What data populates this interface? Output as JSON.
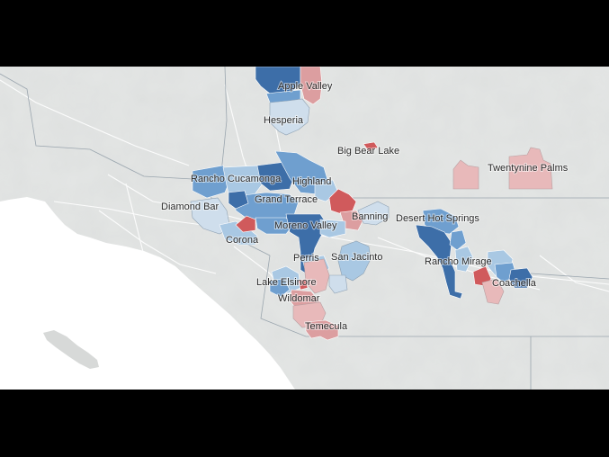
{
  "map": {
    "colors": {
      "land": "#e4e6e5",
      "water": "#ffffff",
      "strong_blue": "#3d6ea8",
      "mid_blue": "#6f9fcf",
      "light_blue": "#a9c8e3",
      "pale_blue": "#cfdeec",
      "pale_red": "#e8b9ba",
      "light_red": "#dc9ea0",
      "strong_red": "#d05a5c",
      "boundary": "#9aa5ae"
    },
    "labels": {
      "apple_valley": "Apple Valley",
      "hesperia": "Hesperia",
      "big_bear_lake": "Big Bear Lake",
      "twentynine_palms": "Twentynine Palms",
      "rancho_cucamonga": "Rancho Cucamonga",
      "highland": "Highland",
      "grand_terrace": "Grand Terrace",
      "diamond_bar": "Diamond Bar",
      "moreno_valley": "Moreno Valley",
      "banning": "Banning",
      "desert_hot_springs": "Desert Hot Springs",
      "corona": "Corona",
      "perris": "Perris",
      "san_jacinto": "San Jacinto",
      "rancho_mirage": "Rancho Mirage",
      "lake_elsinore": "Lake Elsinore",
      "coachella": "Coachella",
      "wildomar": "Wildomar",
      "temecula": "Temecula"
    }
  }
}
